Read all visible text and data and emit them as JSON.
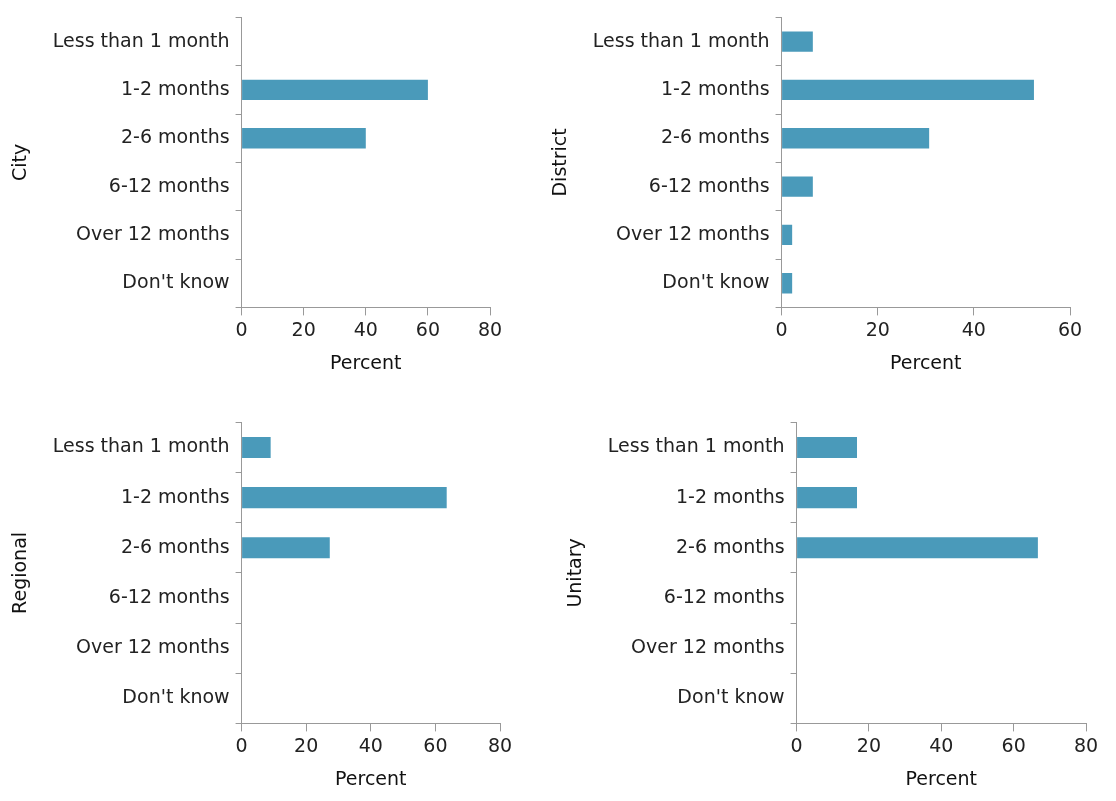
{
  "chart_data": [
    {
      "type": "bar",
      "orientation": "horizontal",
      "ylabel": "City",
      "xlabel": "Percent",
      "categories": [
        "Less than 1 month",
        "1-2 months",
        "2-6 months",
        "6-12 months",
        "Over 12 months",
        "Don't know"
      ],
      "values": [
        0,
        60,
        40,
        0,
        0,
        0
      ],
      "color": "#4a9aba",
      "xlim": [
        0,
        80
      ],
      "xticks": [
        0,
        20,
        40,
        60,
        80
      ],
      "grid": false,
      "legend": false
    },
    {
      "type": "bar",
      "orientation": "horizontal",
      "ylabel": "District",
      "xlabel": "Percent",
      "categories": [
        "Less than 1 month",
        "1-2 months",
        "2-6 months",
        "6-12 months",
        "Over 12 months",
        "Don't know"
      ],
      "values": [
        6.5,
        52.5,
        30.7,
        6.5,
        2.2,
        2.2
      ],
      "color": "#4a9aba",
      "xlim": [
        0,
        60
      ],
      "xticks": [
        0,
        20,
        40,
        60
      ],
      "grid": false,
      "legend": false
    },
    {
      "type": "bar",
      "orientation": "horizontal",
      "ylabel": "Regional",
      "xlabel": "Percent",
      "categories": [
        "Less than 1 month",
        "1-2 months",
        "2-6 months",
        "6-12 months",
        "Over 12 months",
        "Don't know"
      ],
      "values": [
        9,
        63.5,
        27.3,
        0,
        0,
        0
      ],
      "color": "#4a9aba",
      "xlim": [
        0,
        80
      ],
      "xticks": [
        0,
        20,
        40,
        60,
        80
      ],
      "grid": false,
      "legend": false
    },
    {
      "type": "bar",
      "orientation": "horizontal",
      "ylabel": "Unitary",
      "xlabel": "Percent",
      "categories": [
        "Less than 1 month",
        "1-2 months",
        "2-6 months",
        "6-12 months",
        "Over 12 months",
        "Don't know"
      ],
      "values": [
        16.7,
        16.7,
        66.7,
        0,
        0,
        0
      ],
      "color": "#4a9aba",
      "xlim": [
        0,
        80
      ],
      "xticks": [
        0,
        20,
        40,
        60,
        80
      ],
      "grid": false,
      "legend": false
    }
  ]
}
